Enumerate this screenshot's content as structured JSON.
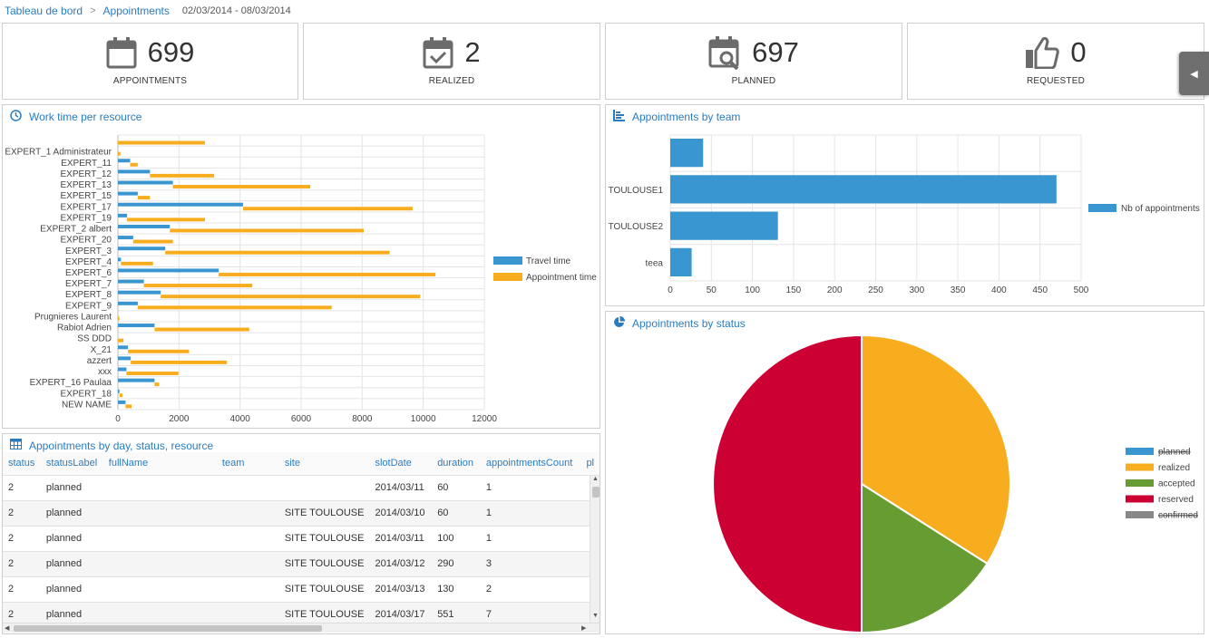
{
  "breadcrumb": {
    "home": "Tableau de bord",
    "separator": ">",
    "current": "Appointments",
    "date_range": "02/03/2014 - 08/03/2014"
  },
  "kpis": [
    {
      "value": "699",
      "label": "APPOINTMENTS",
      "icon": "calendar-icon"
    },
    {
      "value": "2",
      "label": "REALIZED",
      "icon": "calendar-check-icon"
    },
    {
      "value": "697",
      "label": "PLANNED",
      "icon": "calendar-search-icon"
    },
    {
      "value": "0",
      "label": "REQUESTED",
      "icon": "thumbs-up-icon"
    }
  ],
  "collapse_button": "◀",
  "work_time_panel": {
    "title": "Work time per resource"
  },
  "team_panel": {
    "title": "Appointments by team"
  },
  "status_panel": {
    "title": "Appointments by status"
  },
  "table_panel": {
    "title": "Appointments by day, status, resource",
    "columns": [
      "status",
      "statusLabel",
      "fullName",
      "team",
      "site",
      "slotDate",
      "duration",
      "appointmentsCount",
      "pl"
    ],
    "rows": [
      [
        "2",
        "planned",
        "",
        "",
        "",
        "2014/03/11",
        "60",
        "1"
      ],
      [
        "2",
        "planned",
        "",
        "",
        "SITE TOULOUSE",
        "2014/03/10",
        "60",
        "1"
      ],
      [
        "2",
        "planned",
        "",
        "",
        "SITE TOULOUSE",
        "2014/03/11",
        "100",
        "1"
      ],
      [
        "2",
        "planned",
        "",
        "",
        "SITE TOULOUSE",
        "2014/03/12",
        "290",
        "3"
      ],
      [
        "2",
        "planned",
        "",
        "",
        "SITE TOULOUSE",
        "2014/03/13",
        "130",
        "2"
      ],
      [
        "2",
        "planned",
        "",
        "",
        "SITE TOULOUSE",
        "2014/03/17",
        "551",
        "7"
      ]
    ]
  },
  "colors": {
    "accent": "#2a7cc0",
    "travel": "#3996d0",
    "appointment": "#f8ad1f",
    "realized": "#f8ad1f",
    "accepted": "#669c32",
    "reserved": "#cc0033",
    "planned": "#3996d0",
    "confirmed": "#888888"
  },
  "chart_data": [
    {
      "type": "bar",
      "orientation": "horizontal",
      "title": "Work time per resource",
      "categories": [
        "",
        "EXPERT_1 Administrateur",
        "EXPERT_11",
        "EXPERT_12",
        "EXPERT_13",
        "EXPERT_15",
        "EXPERT_17",
        "EXPERT_19",
        "EXPERT_2 albert",
        "EXPERT_20",
        "EXPERT_3",
        "EXPERT_4",
        "EXPERT_6",
        "EXPERT_7",
        "EXPERT_8",
        "EXPERT_9",
        "Prugnieres Laurent",
        "Rabiot Adrien",
        "SS DDD",
        "X_21",
        "azzert",
        "xxx",
        "EXPERT_16 Paulaa",
        "EXPERT_18",
        "NEW NAME"
      ],
      "series": [
        {
          "name": "Travel time",
          "values": [
            0,
            0,
            400,
            1050,
            1800,
            650,
            4100,
            300,
            1700,
            500,
            1550,
            100,
            3300,
            850,
            1400,
            650,
            0,
            1200,
            0,
            330,
            420,
            280,
            1200,
            50,
            250
          ]
        },
        {
          "name": "Appointment time",
          "values": [
            2850,
            80,
            250,
            2100,
            4500,
            400,
            5550,
            2550,
            6350,
            1300,
            7350,
            1050,
            7100,
            3550,
            8500,
            6350,
            50,
            3100,
            180,
            2000,
            3150,
            1700,
            150,
            100,
            200
          ]
        }
      ],
      "xticks": [
        0,
        2000,
        4000,
        6000,
        8000,
        10000,
        12000
      ],
      "xlim": [
        0,
        12000
      ],
      "legend": "right"
    },
    {
      "type": "bar",
      "orientation": "horizontal",
      "title": "Appointments by team",
      "categories": [
        "",
        "TOULOUSE1",
        "TOULOUSE2",
        "teea"
      ],
      "series": [
        {
          "name": "Nb of appointments",
          "values": [
            40,
            470,
            131,
            26
          ]
        }
      ],
      "xticks": [
        0,
        50,
        100,
        150,
        200,
        250,
        300,
        350,
        400,
        450,
        500
      ],
      "xlim": [
        0,
        500
      ],
      "legend": "right"
    },
    {
      "type": "pie",
      "title": "Appointments by status",
      "labels": [
        "planned",
        "realized",
        "accepted",
        "reserved",
        "confirmed"
      ],
      "values": [
        0,
        34,
        16,
        50,
        0
      ],
      "hidden": [
        "planned",
        "confirmed"
      ],
      "legend": "right"
    }
  ]
}
